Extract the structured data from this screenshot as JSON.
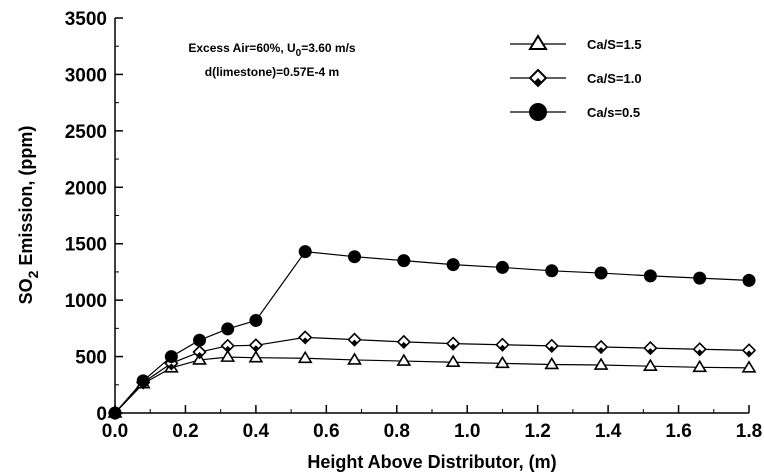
{
  "chart_data": {
    "type": "line",
    "xlabel": "Height Above Distributor, (m)",
    "ylabel_parts": {
      "main": "SO",
      "sub": "2",
      "rest": " Emission, (ppm)"
    },
    "xlim": [
      0,
      1.8
    ],
    "ylim": [
      0,
      3500
    ],
    "x_ticks": [
      "0.0",
      "0.2",
      "0.4",
      "0.6",
      "0.8",
      "1.0",
      "1.2",
      "1.4",
      "1.6",
      "1.8"
    ],
    "y_ticks": [
      "0",
      "500",
      "1000",
      "1500",
      "2000",
      "2500",
      "3000",
      "3500"
    ],
    "annotation": {
      "line1_pre": "Excess Air=60%, U",
      "line1_sub": "0",
      "line1_post": "=3.60 m/s",
      "line2": "d(limestone)=0.57E-4 m"
    },
    "legend_position": "top-right",
    "series": [
      {
        "name": "Ca/S=1.5",
        "marker": "triangle",
        "x": [
          0.0,
          0.08,
          0.16,
          0.24,
          0.32,
          0.4,
          0.54,
          0.68,
          0.82,
          0.96,
          1.1,
          1.24,
          1.38,
          1.52,
          1.66,
          1.8
        ],
        "y": [
          0,
          260,
          400,
          470,
          495,
          490,
          485,
          470,
          460,
          450,
          440,
          430,
          425,
          415,
          405,
          400
        ]
      },
      {
        "name": "Ca/S=1.0",
        "marker": "diamond",
        "x": [
          0.0,
          0.08,
          0.16,
          0.24,
          0.32,
          0.4,
          0.54,
          0.68,
          0.82,
          0.96,
          1.1,
          1.24,
          1.38,
          1.52,
          1.66,
          1.8
        ],
        "y": [
          0,
          270,
          440,
          540,
          595,
          600,
          670,
          650,
          630,
          615,
          605,
          595,
          585,
          575,
          565,
          555
        ]
      },
      {
        "name": "Ca/s=0.5",
        "marker": "circle",
        "x": [
          0.0,
          0.08,
          0.16,
          0.24,
          0.32,
          0.4,
          0.54,
          0.68,
          0.82,
          0.96,
          1.1,
          1.24,
          1.38,
          1.52,
          1.66,
          1.8
        ],
        "y": [
          0,
          285,
          500,
          645,
          745,
          820,
          1430,
          1385,
          1350,
          1315,
          1290,
          1260,
          1240,
          1215,
          1195,
          1175
        ]
      }
    ]
  }
}
